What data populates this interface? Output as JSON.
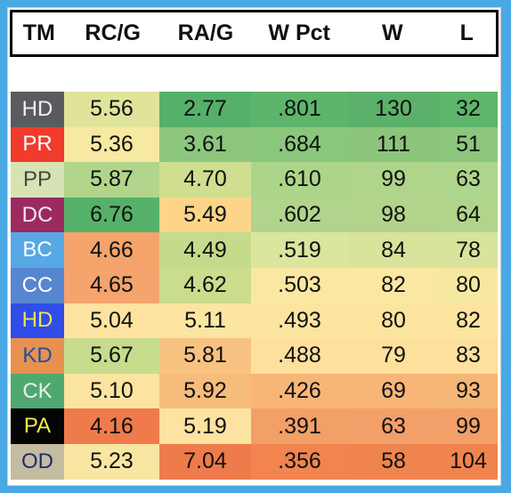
{
  "headers": [
    "TM",
    "RC/G",
    "RA/G",
    "W Pct",
    "W",
    "L"
  ],
  "rows": [
    {
      "tm": "HD",
      "tm_bg": "#5b5b5f",
      "tm_fg": "#f2f2f2",
      "vals": [
        "5.56",
        "2.77",
        ".801",
        "130",
        "32"
      ],
      "bgs": [
        "#dfe49a",
        "#55b16a",
        "#5db56b",
        "#5bb16a",
        "#5db66b"
      ]
    },
    {
      "tm": "PR",
      "tm_bg": "#f13b2c",
      "tm_fg": "#ffffff",
      "vals": [
        "5.36",
        "3.61",
        ".684",
        "111",
        "51"
      ],
      "bgs": [
        "#f7e8a2",
        "#8cc67d",
        "#8ac67c",
        "#8bc57b",
        "#8cc67d"
      ]
    },
    {
      "tm": "PP",
      "tm_bg": "#d8e3b3",
      "tm_fg": "#444444",
      "vals": [
        "5.87",
        "4.70",
        ".610",
        "99",
        "63"
      ],
      "bgs": [
        "#b1d58a",
        "#cfdf8f",
        "#add58a",
        "#aed58a",
        "#add58b"
      ]
    },
    {
      "tm": "DC",
      "tm_bg": "#9b2a60",
      "tm_fg": "#f4e8ee",
      "vals": [
        "6.76",
        "5.49",
        ".602",
        "98",
        "64"
      ],
      "bgs": [
        "#55b16a",
        "#fcd589",
        "#b0d48b",
        "#b1d48a",
        "#b1d48b"
      ]
    },
    {
      "tm": "BC",
      "tm_bg": "#57a9e6",
      "tm_fg": "#ffffff",
      "vals": [
        "4.66",
        "4.49",
        ".519",
        "84",
        "78"
      ],
      "bgs": [
        "#f4a46b",
        "#c5db8b",
        "#dbe59d",
        "#d9e39b",
        "#d8e39b"
      ]
    },
    {
      "tm": "CC",
      "tm_bg": "#5786d0",
      "tm_fg": "#ffffff",
      "vals": [
        "4.65",
        "4.62",
        ".503",
        "82",
        "80"
      ],
      "bgs": [
        "#f4a46c",
        "#cadd8d",
        "#fae8a2",
        "#fae8a2",
        "#f7e89f"
      ]
    },
    {
      "tm": "HD",
      "tm_bg": "#2f4de8",
      "tm_fg": "#f2e44a",
      "vals": [
        "5.04",
        "5.11",
        ".493",
        "80",
        "82"
      ],
      "bgs": [
        "#fde39f",
        "#fbe5a1",
        "#fde49f",
        "#fde49f",
        "#fde49f"
      ]
    },
    {
      "tm": "KD",
      "tm_bg": "#e8914f",
      "tm_fg": "#1f4ea8",
      "vals": [
        "5.67",
        "5.81",
        ".488",
        "79",
        "83"
      ],
      "bgs": [
        "#c6dc8c",
        "#f8c381",
        "#fde09c",
        "#fde09c",
        "#fce09c"
      ]
    },
    {
      "tm": "CK",
      "tm_bg": "#4fa870",
      "tm_fg": "#eaf2ea",
      "vals": [
        "5.10",
        "5.92",
        ".426",
        "69",
        "93"
      ],
      "bgs": [
        "#fbe3a0",
        "#f6bc7b",
        "#f7b677",
        "#f7b677",
        "#f6b677"
      ]
    },
    {
      "tm": "PA",
      "tm_bg": "#050505",
      "tm_fg": "#f2ee45",
      "vals": [
        "4.16",
        "5.19",
        ".391",
        "63",
        "99"
      ],
      "bgs": [
        "#ef7a4c",
        "#fde2a0",
        "#f39f68",
        "#f39f69",
        "#f39f68"
      ]
    },
    {
      "tm": "OD",
      "tm_bg": "#c4bca0",
      "tm_fg": "#1b2d6b",
      "vals": [
        "5.23",
        "7.04",
        ".356",
        "58",
        "104"
      ],
      "bgs": [
        "#f9e6a2",
        "#ee7b4c",
        "#f1844f",
        "#f0844f",
        "#f0844f"
      ]
    }
  ]
}
